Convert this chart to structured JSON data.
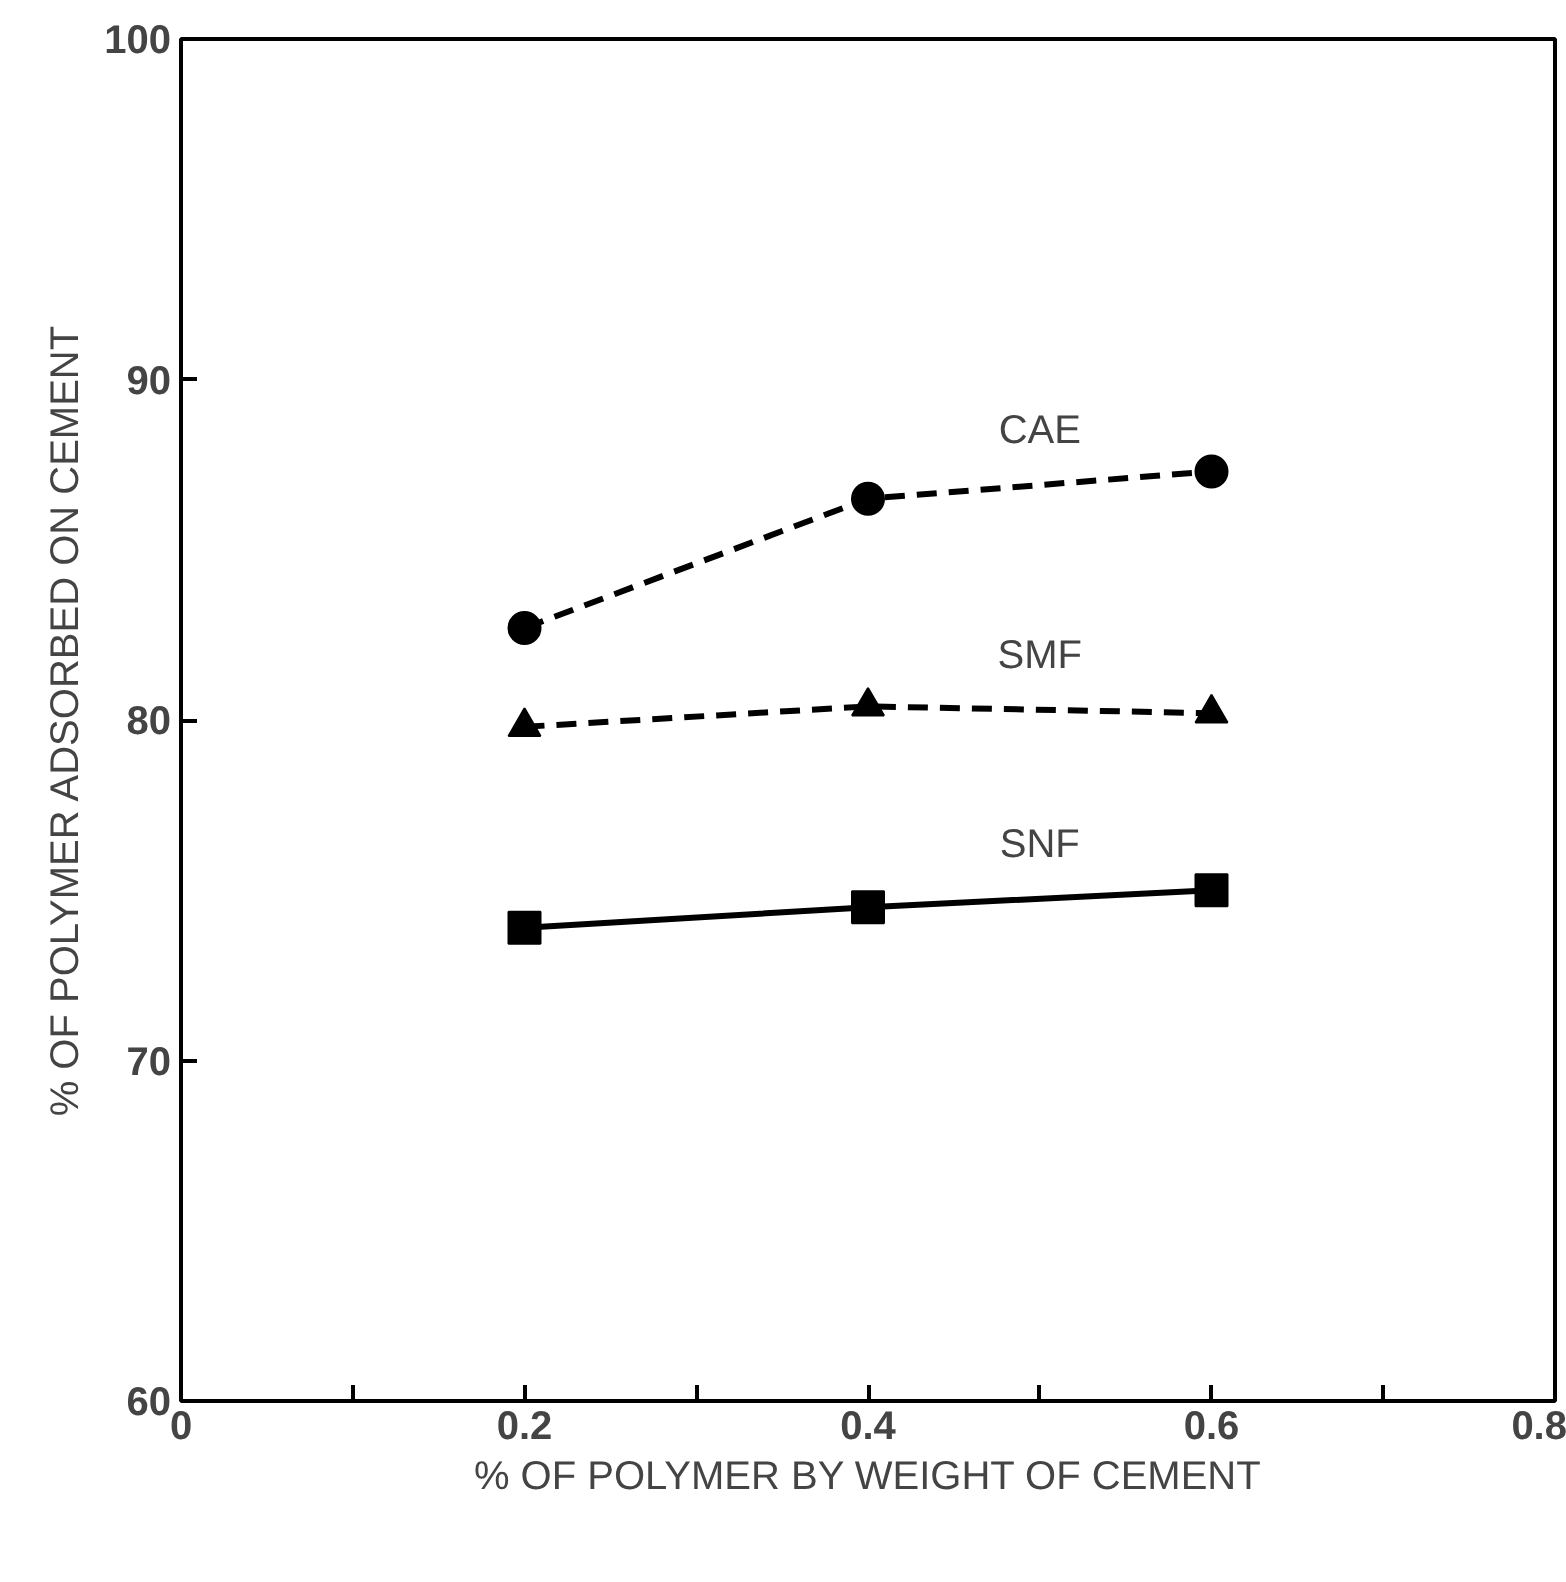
{
  "chart_data": {
    "type": "line",
    "xlabel": "% OF POLYMER BY WEIGHT OF CEMENT",
    "ylabel": "% OF POLYMER ADSORBED ON CEMENT",
    "x": [
      0.2,
      0.4,
      0.6
    ],
    "series": [
      {
        "name": "CAE",
        "color": "#000000",
        "marker": "circle",
        "line_style": "dashed",
        "values": [
          82.7,
          86.5,
          87.3
        ]
      },
      {
        "name": "SMF",
        "color": "#000000",
        "marker": "triangle",
        "line_style": "dashed",
        "values": [
          79.8,
          80.4,
          80.2
        ]
      },
      {
        "name": "SNF",
        "color": "#000000",
        "marker": "square",
        "line_style": "solid",
        "values": [
          73.9,
          74.5,
          75.0
        ]
      }
    ],
    "xlim": [
      0,
      0.8
    ],
    "ylim": [
      60,
      100
    ],
    "xticks": [
      0,
      {
        "value": 0.1,
        "label": null
      },
      0.2,
      {
        "value": 0.3,
        "label": null
      },
      0.4,
      {
        "value": 0.5,
        "label": null
      },
      0.6,
      {
        "value": 0.7,
        "label": null
      },
      0.8
    ],
    "yticks": [
      60,
      70,
      80,
      90,
      100
    ],
    "grid": false,
    "legend": false
  }
}
